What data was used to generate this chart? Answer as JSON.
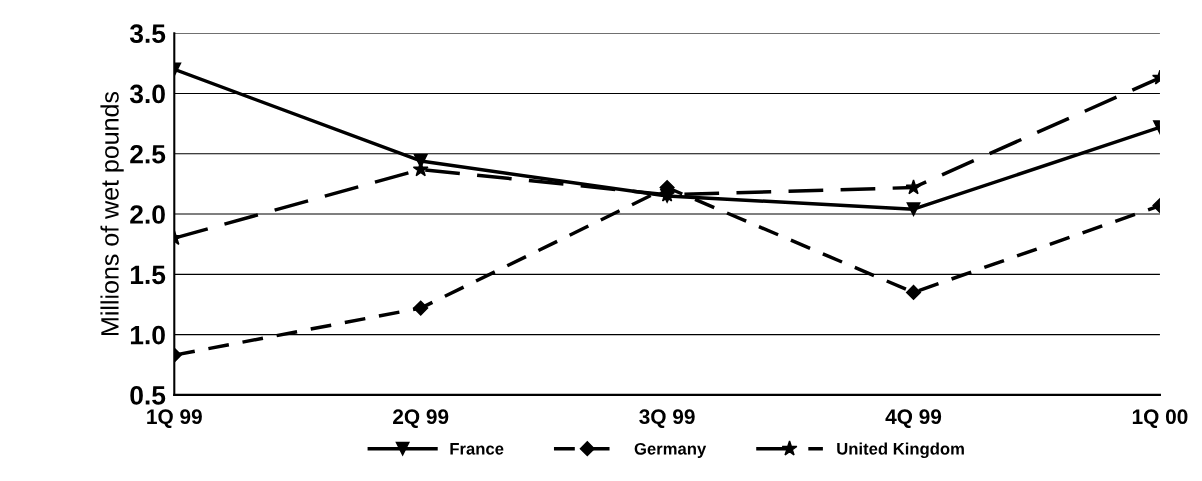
{
  "chart_data": {
    "type": "line",
    "ylabel": "Millions of wet pounds",
    "categories": [
      "1Q 99",
      "2Q 99",
      "3Q 99",
      "4Q 99",
      "1Q 00"
    ],
    "series": [
      {
        "name": "France",
        "color": "#000000",
        "marker": "triangle",
        "line_style": "solid",
        "values": [
          3.2,
          2.44,
          2.15,
          2.04,
          2.72
        ]
      },
      {
        "name": "Germany",
        "color": "#000000",
        "marker": "diamond",
        "line_style": "dashed",
        "values": [
          0.83,
          1.22,
          2.22,
          1.35,
          2.07
        ]
      },
      {
        "name": "United Kingdom",
        "color": "#000000",
        "marker": "star",
        "line_style": "long dashed",
        "values": [
          1.8,
          2.37,
          2.16,
          2.22,
          3.13
        ]
      }
    ],
    "ylim": [
      0.5,
      3.5
    ],
    "yticks": [
      0.5,
      {
        "value": 1,
        "label": "1.0"
      },
      1.5,
      {
        "value": 2,
        "label": "2.0"
      },
      2.5,
      {
        "value": 3,
        "label": "3.0"
      },
      3.5
    ],
    "grid": "y",
    "legend": "bottom"
  }
}
